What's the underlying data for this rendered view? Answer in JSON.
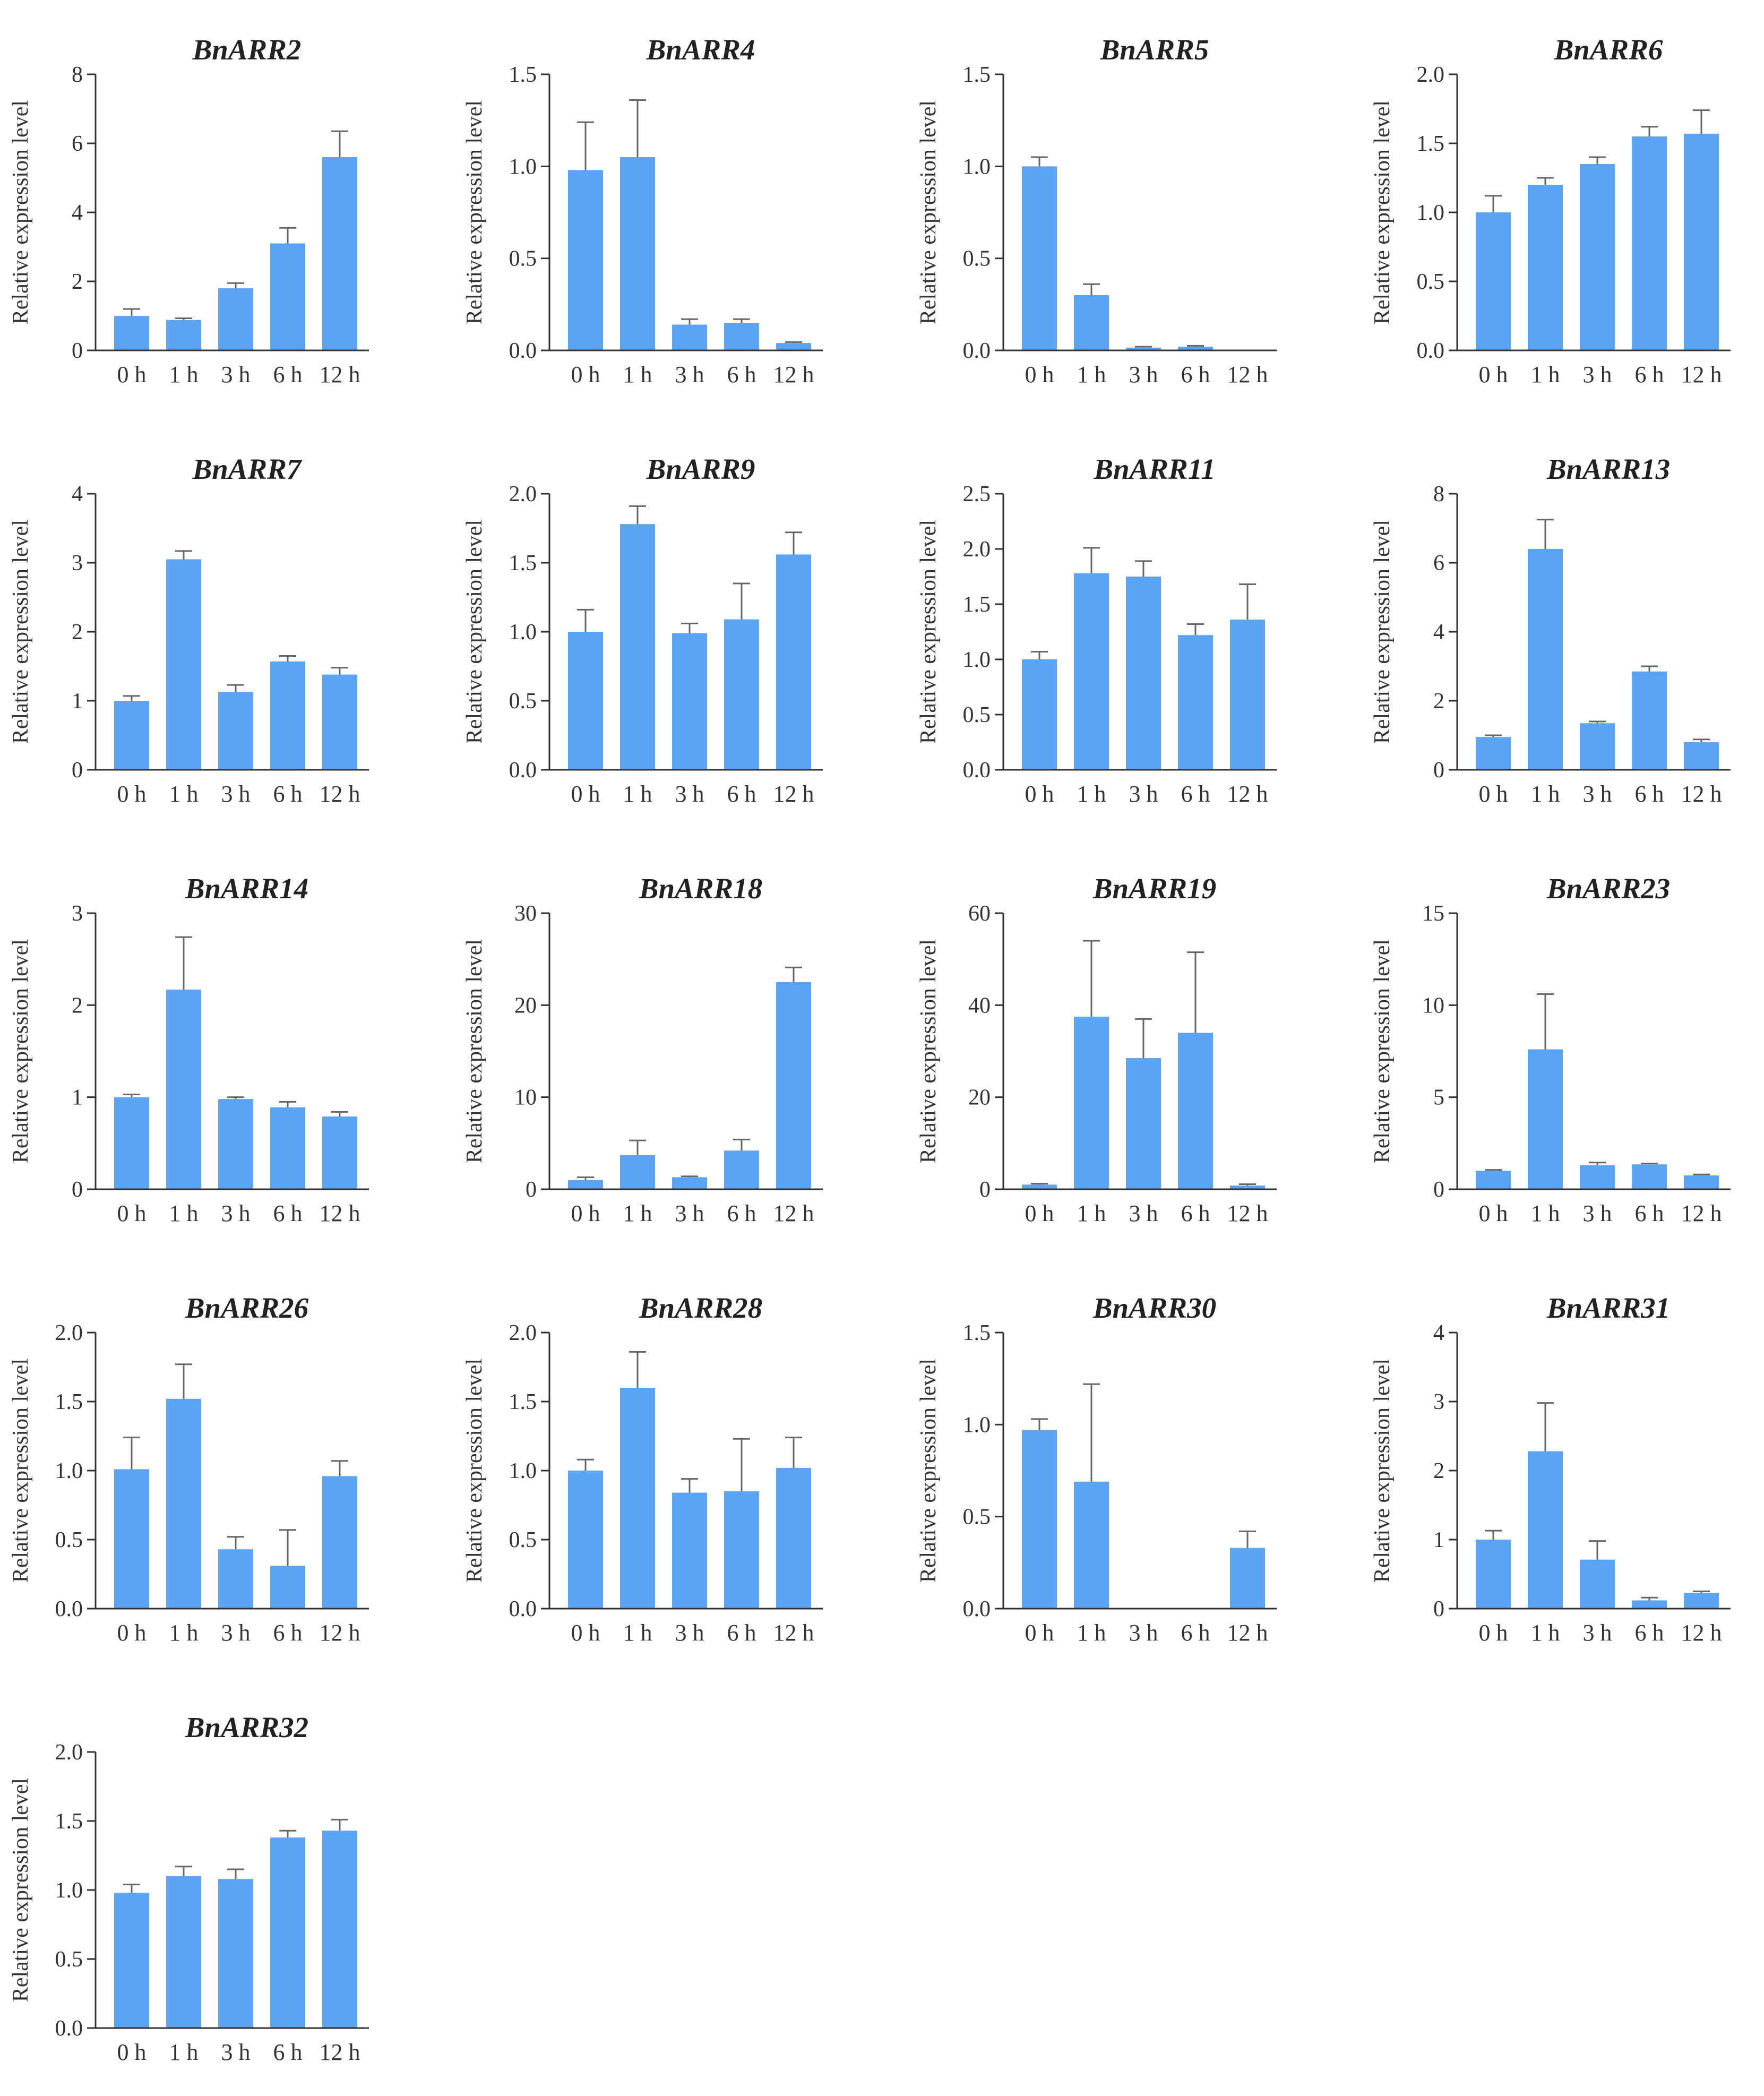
{
  "figure": {
    "bar_color": "#5BA3F5",
    "axis_color": "#333333",
    "error_color": "#666666"
  },
  "chart_data": [
    {
      "type": "bar",
      "title": "BnARR2",
      "ylabel": "Relative expression level",
      "categories": [
        "0 h",
        "1 h",
        "3 h",
        "6 h",
        "12 h"
      ],
      "values": [
        1.0,
        0.88,
        1.8,
        3.1,
        5.6
      ],
      "errors": [
        0.2,
        0.05,
        0.15,
        0.45,
        0.75
      ],
      "ylim": [
        0,
        8
      ],
      "yticks": [
        "0",
        "2",
        "4",
        "6",
        "8"
      ]
    },
    {
      "type": "bar",
      "title": "BnARR4",
      "ylabel": "Relative expression level",
      "categories": [
        "0 h",
        "1 h",
        "3 h",
        "6 h",
        "12 h"
      ],
      "values": [
        0.98,
        1.05,
        0.14,
        0.15,
        0.04
      ],
      "errors": [
        0.26,
        0.31,
        0.03,
        0.02,
        0.005
      ],
      "ylim": [
        0,
        1.5
      ],
      "yticks": [
        "0.0",
        "0.5",
        "1.0",
        "1.5"
      ]
    },
    {
      "type": "bar",
      "title": "BnARR5",
      "ylabel": "Relative expression level",
      "categories": [
        "0 h",
        "1 h",
        "3 h",
        "6 h",
        "12 h"
      ],
      "values": [
        1.0,
        0.3,
        0.015,
        0.02,
        0.0
      ],
      "errors": [
        0.05,
        0.06,
        0.005,
        0.005,
        0.0
      ],
      "ylim": [
        0,
        1.5
      ],
      "yticks": [
        "0.0",
        "0.5",
        "1.0",
        "1.5"
      ]
    },
    {
      "type": "bar",
      "title": "BnARR6",
      "ylabel": "Relative expression level",
      "categories": [
        "0 h",
        "1 h",
        "3 h",
        "6 h",
        "12 h"
      ],
      "values": [
        1.0,
        1.2,
        1.35,
        1.55,
        1.57
      ],
      "errors": [
        0.12,
        0.05,
        0.05,
        0.07,
        0.17
      ],
      "ylim": [
        0,
        2.0
      ],
      "yticks": [
        "0.0",
        "0.5",
        "1.0",
        "1.5",
        "2.0"
      ]
    },
    {
      "type": "bar",
      "title": "BnARR7",
      "ylabel": "Relative expression level",
      "categories": [
        "0 h",
        "1 h",
        "3 h",
        "6 h",
        "12 h"
      ],
      "values": [
        1.0,
        3.05,
        1.13,
        1.57,
        1.38
      ],
      "errors": [
        0.07,
        0.12,
        0.1,
        0.08,
        0.1
      ],
      "ylim": [
        0,
        4
      ],
      "yticks": [
        "0",
        "1",
        "2",
        "3",
        "4"
      ]
    },
    {
      "type": "bar",
      "title": "BnARR9",
      "ylabel": "Relative expression level",
      "categories": [
        "0 h",
        "1 h",
        "3 h",
        "6 h",
        "12 h"
      ],
      "values": [
        1.0,
        1.78,
        0.99,
        1.09,
        1.56
      ],
      "errors": [
        0.16,
        0.13,
        0.07,
        0.26,
        0.16
      ],
      "ylim": [
        0,
        2.0
      ],
      "yticks": [
        "0.0",
        "0.5",
        "1.0",
        "1.5",
        "2.0"
      ]
    },
    {
      "type": "bar",
      "title": "BnARR11",
      "ylabel": "Relative expression level",
      "categories": [
        "0 h",
        "1 h",
        "3 h",
        "6 h",
        "12 h"
      ],
      "values": [
        1.0,
        1.78,
        1.75,
        1.22,
        1.36
      ],
      "errors": [
        0.07,
        0.23,
        0.14,
        0.1,
        0.32
      ],
      "ylim": [
        0,
        2.5
      ],
      "yticks": [
        "0.0",
        "0.5",
        "1.0",
        "1.5",
        "2.0",
        "2.5"
      ]
    },
    {
      "type": "bar",
      "title": "BnARR13",
      "ylabel": "Relative expression level",
      "categories": [
        "0 h",
        "1 h",
        "3 h",
        "6 h",
        "12 h"
      ],
      "values": [
        0.95,
        6.4,
        1.35,
        2.85,
        0.8
      ],
      "errors": [
        0.05,
        0.85,
        0.05,
        0.15,
        0.08
      ],
      "ylim": [
        0,
        8
      ],
      "yticks": [
        "0",
        "2",
        "4",
        "6",
        "8"
      ]
    },
    {
      "type": "bar",
      "title": "BnARR14",
      "ylabel": "Relative expression level",
      "categories": [
        "0 h",
        "1 h",
        "3 h",
        "6 h",
        "12 h"
      ],
      "values": [
        1.0,
        2.17,
        0.98,
        0.89,
        0.79
      ],
      "errors": [
        0.03,
        0.57,
        0.02,
        0.06,
        0.05
      ],
      "ylim": [
        0,
        3
      ],
      "yticks": [
        "0",
        "1",
        "2",
        "3"
      ]
    },
    {
      "type": "bar",
      "title": "BnARR18",
      "ylabel": "Relative expression level",
      "categories": [
        "0 h",
        "1 h",
        "3 h",
        "6 h",
        "12 h"
      ],
      "values": [
        1.0,
        3.7,
        1.3,
        4.2,
        22.5
      ],
      "errors": [
        0.3,
        1.6,
        0.1,
        1.2,
        1.6
      ],
      "ylim": [
        0,
        30
      ],
      "yticks": [
        "0",
        "10",
        "20",
        "30"
      ]
    },
    {
      "type": "bar",
      "title": "BnARR19",
      "ylabel": "Relative expression level",
      "categories": [
        "0 h",
        "1 h",
        "3 h",
        "6 h",
        "12 h"
      ],
      "values": [
        1.0,
        37.5,
        28.5,
        34.0,
        0.8
      ],
      "errors": [
        0.2,
        16.5,
        8.5,
        17.5,
        0.3
      ],
      "ylim": [
        0,
        60
      ],
      "yticks": [
        "0",
        "20",
        "40",
        "60"
      ]
    },
    {
      "type": "bar",
      "title": "BnARR23",
      "ylabel": "Relative expression level",
      "categories": [
        "0 h",
        "1 h",
        "3 h",
        "6 h",
        "12 h"
      ],
      "values": [
        1.0,
        7.6,
        1.3,
        1.35,
        0.75
      ],
      "errors": [
        0.05,
        3.0,
        0.15,
        0.05,
        0.05
      ],
      "ylim": [
        0,
        15
      ],
      "yticks": [
        "0",
        "5",
        "10",
        "15"
      ]
    },
    {
      "type": "bar",
      "title": "BnARR26",
      "ylabel": "Relative expression level",
      "categories": [
        "0 h",
        "1 h",
        "3 h",
        "6 h",
        "12 h"
      ],
      "values": [
        1.01,
        1.52,
        0.43,
        0.31,
        0.96
      ],
      "errors": [
        0.23,
        0.25,
        0.09,
        0.26,
        0.11
      ],
      "ylim": [
        0,
        2.0
      ],
      "yticks": [
        "0.0",
        "0.5",
        "1.0",
        "1.5",
        "2.0"
      ]
    },
    {
      "type": "bar",
      "title": "BnARR28",
      "ylabel": "Relative expression level",
      "categories": [
        "0 h",
        "1 h",
        "3 h",
        "6 h",
        "12 h"
      ],
      "values": [
        1.0,
        1.6,
        0.84,
        0.85,
        1.02
      ],
      "errors": [
        0.08,
        0.26,
        0.1,
        0.38,
        0.22
      ],
      "ylim": [
        0,
        2.0
      ],
      "yticks": [
        "0.0",
        "0.5",
        "1.0",
        "1.5",
        "2.0"
      ]
    },
    {
      "type": "bar",
      "title": "BnARR30",
      "ylabel": "Relative expression level",
      "categories": [
        "0 h",
        "1 h",
        "3 h",
        "6 h",
        "12 h"
      ],
      "values": [
        0.97,
        0.69,
        0.0,
        0.0,
        0.33
      ],
      "errors": [
        0.06,
        0.53,
        0.0,
        0.0,
        0.09
      ],
      "ylim": [
        0,
        1.5
      ],
      "yticks": [
        "0.0",
        "0.5",
        "1.0",
        "1.5"
      ]
    },
    {
      "type": "bar",
      "title": "BnARR31",
      "ylabel": "Relative expression level",
      "categories": [
        "0 h",
        "1 h",
        "3 h",
        "6 h",
        "12 h"
      ],
      "values": [
        1.0,
        2.28,
        0.71,
        0.12,
        0.23
      ],
      "errors": [
        0.13,
        0.7,
        0.27,
        0.04,
        0.02
      ],
      "ylim": [
        0,
        4
      ],
      "yticks": [
        "0",
        "1",
        "2",
        "3",
        "4"
      ]
    },
    {
      "type": "bar",
      "title": "BnARR32",
      "ylabel": "Relative expression level",
      "categories": [
        "0 h",
        "1 h",
        "3 h",
        "6 h",
        "12 h"
      ],
      "values": [
        0.98,
        1.1,
        1.08,
        1.38,
        1.43
      ],
      "errors": [
        0.06,
        0.07,
        0.07,
        0.05,
        0.08
      ],
      "ylim": [
        0,
        2.0
      ],
      "yticks": [
        "0.0",
        "0.5",
        "1.0",
        "1.5",
        "2.0"
      ]
    }
  ]
}
